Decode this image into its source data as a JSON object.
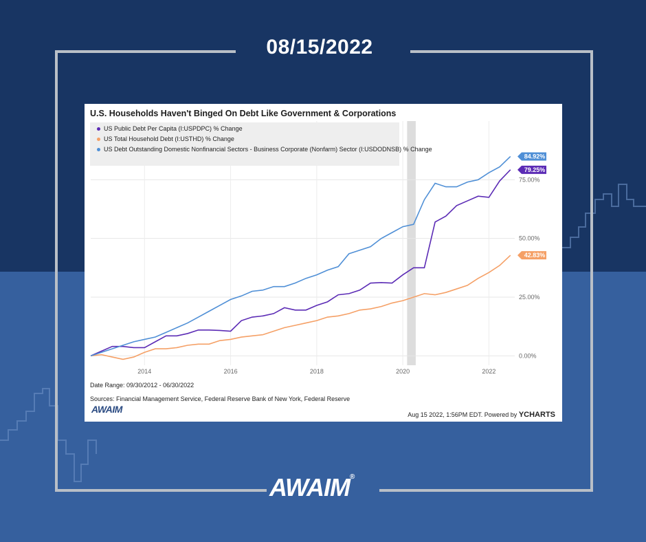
{
  "date": "08/15/2022",
  "chart_data": {
    "type": "line",
    "title": "U.S. Households Haven't Binged On Debt Like Government & Corporations",
    "x_ticks": [
      "2014",
      "2016",
      "2018",
      "2020",
      "2022"
    ],
    "y_ticks": [
      "0.00%",
      "25.00%",
      "50.00%",
      "75.00%"
    ],
    "ylim": [
      -4,
      100
    ],
    "xlim": [
      2012.75,
      2022.6
    ],
    "grid": true,
    "legend_position": "top-left",
    "shaded_region": [
      2020.1,
      2020.3
    ],
    "series": [
      {
        "name": "US Public Debt Per Capita (I:USPDPC) % Change",
        "color": "#5b2bb5",
        "end_label": "79.25%",
        "points": [
          [
            2012.75,
            0
          ],
          [
            2013.0,
            2
          ],
          [
            2013.25,
            4
          ],
          [
            2013.5,
            4
          ],
          [
            2013.75,
            3.5
          ],
          [
            2014.0,
            3.5
          ],
          [
            2014.25,
            6
          ],
          [
            2014.5,
            8.5
          ],
          [
            2014.75,
            8.5
          ],
          [
            2015.0,
            9.5
          ],
          [
            2015.25,
            11
          ],
          [
            2015.5,
            11
          ],
          [
            2015.75,
            10.8
          ],
          [
            2016.0,
            10.5
          ],
          [
            2016.25,
            15
          ],
          [
            2016.5,
            16.5
          ],
          [
            2016.75,
            17
          ],
          [
            2017.0,
            18
          ],
          [
            2017.25,
            20.5
          ],
          [
            2017.5,
            19.5
          ],
          [
            2017.75,
            19.5
          ],
          [
            2018.0,
            21.5
          ],
          [
            2018.25,
            23
          ],
          [
            2018.5,
            26
          ],
          [
            2018.75,
            26.5
          ],
          [
            2019.0,
            28
          ],
          [
            2019.25,
            31
          ],
          [
            2019.5,
            31.2
          ],
          [
            2019.75,
            31
          ],
          [
            2020.0,
            34.5
          ],
          [
            2020.25,
            37.5
          ],
          [
            2020.5,
            37.5
          ],
          [
            2020.75,
            57
          ],
          [
            2021.0,
            59.5
          ],
          [
            2021.25,
            64
          ],
          [
            2021.5,
            66
          ],
          [
            2021.75,
            68
          ],
          [
            2022.0,
            67.5
          ],
          [
            2022.25,
            74.5
          ],
          [
            2022.5,
            79.25
          ]
        ]
      },
      {
        "name": "US Total Household Debt (I:USTHD) % Change",
        "color": "#f5a066",
        "end_label": "42.83%",
        "points": [
          [
            2012.75,
            0
          ],
          [
            2013.0,
            0.5
          ],
          [
            2013.25,
            -0.5
          ],
          [
            2013.5,
            -1.5
          ],
          [
            2013.75,
            -0.5
          ],
          [
            2014.0,
            1.5
          ],
          [
            2014.25,
            3
          ],
          [
            2014.5,
            3
          ],
          [
            2014.75,
            3.5
          ],
          [
            2015.0,
            4.5
          ],
          [
            2015.25,
            5
          ],
          [
            2015.5,
            5
          ],
          [
            2015.75,
            6.5
          ],
          [
            2016.0,
            7
          ],
          [
            2016.25,
            8
          ],
          [
            2016.5,
            8.5
          ],
          [
            2016.75,
            9
          ],
          [
            2017.0,
            10.5
          ],
          [
            2017.25,
            12
          ],
          [
            2017.5,
            13
          ],
          [
            2017.75,
            14
          ],
          [
            2018.0,
            15
          ],
          [
            2018.25,
            16.5
          ],
          [
            2018.5,
            17
          ],
          [
            2018.75,
            18
          ],
          [
            2019.0,
            19.5
          ],
          [
            2019.25,
            20
          ],
          [
            2019.5,
            21
          ],
          [
            2019.75,
            22.5
          ],
          [
            2020.0,
            23.5
          ],
          [
            2020.25,
            25
          ],
          [
            2020.5,
            26.5
          ],
          [
            2020.75,
            26
          ],
          [
            2021.0,
            27
          ],
          [
            2021.25,
            28.5
          ],
          [
            2021.5,
            30
          ],
          [
            2021.75,
            33
          ],
          [
            2022.0,
            35.5
          ],
          [
            2022.25,
            38.5
          ],
          [
            2022.5,
            42.83
          ]
        ]
      },
      {
        "name": "US Debt Outstanding Domestic Nonfinancial Sectors - Business Corporate (Nonfarm) Sector (I:USDODNSB) %     Change",
        "color": "#4f8fd6",
        "end_label": "84.92%",
        "points": [
          [
            2012.75,
            0
          ],
          [
            2013.0,
            1.5
          ],
          [
            2013.25,
            3
          ],
          [
            2013.5,
            4.5
          ],
          [
            2013.75,
            6
          ],
          [
            2014.0,
            7
          ],
          [
            2014.25,
            8
          ],
          [
            2014.5,
            10
          ],
          [
            2014.75,
            12
          ],
          [
            2015.0,
            14
          ],
          [
            2015.25,
            16.5
          ],
          [
            2015.5,
            19
          ],
          [
            2015.75,
            21.5
          ],
          [
            2016.0,
            24
          ],
          [
            2016.25,
            25.5
          ],
          [
            2016.5,
            27.5
          ],
          [
            2016.75,
            28
          ],
          [
            2017.0,
            29.5
          ],
          [
            2017.25,
            29.5
          ],
          [
            2017.5,
            31
          ],
          [
            2017.75,
            33
          ],
          [
            2018.0,
            34.5
          ],
          [
            2018.25,
            36.5
          ],
          [
            2018.5,
            38
          ],
          [
            2018.75,
            43.5
          ],
          [
            2019.0,
            45
          ],
          [
            2019.25,
            46.5
          ],
          [
            2019.5,
            50
          ],
          [
            2019.75,
            52.5
          ],
          [
            2020.0,
            55
          ],
          [
            2020.25,
            56
          ],
          [
            2020.5,
            66.5
          ],
          [
            2020.75,
            73.5
          ],
          [
            2021.0,
            72
          ],
          [
            2021.25,
            72
          ],
          [
            2021.5,
            74
          ],
          [
            2021.75,
            75
          ],
          [
            2022.0,
            78
          ],
          [
            2022.25,
            80.5
          ],
          [
            2022.5,
            84.92
          ]
        ]
      }
    ]
  },
  "date_range": "Date Range: 09/30/2012 - 06/30/2022",
  "sources": "Sources: Financial Management Service, Federal Reserve Bank of New York, Federal Reserve",
  "card_logo": "AWAIM",
  "timestamp": "Aug 15 2022, 1:56PM EDT. Powered by",
  "powered_brand": "YCHARTS",
  "brand_logo": "AWAIM",
  "brand_logo_mark": "®",
  "colors": {
    "bg_top": "#183563",
    "bg_bottom": "#36609e",
    "frame": "#b9bfc7"
  }
}
